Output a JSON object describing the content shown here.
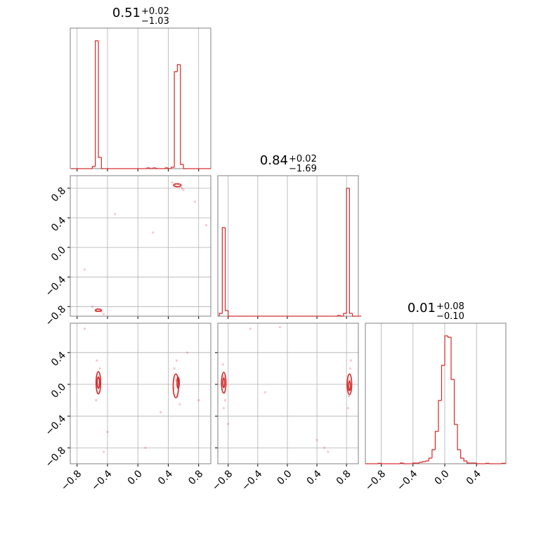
{
  "chart_data": [
    {
      "type": "histogram",
      "color": "#d62728",
      "title": {
        "value": "0.51",
        "upper": "+0.02",
        "lower": "−1.03"
      },
      "bins": [
        -0.88,
        -0.84,
        -0.8,
        -0.76,
        -0.72,
        -0.68,
        -0.64,
        -0.6,
        -0.56,
        -0.52,
        -0.48,
        -0.44,
        -0.4,
        -0.36,
        -0.32,
        -0.28,
        -0.24,
        -0.2,
        -0.16,
        -0.12,
        -0.08,
        -0.04,
        0,
        0.04,
        0.08,
        0.12,
        0.16,
        0.2,
        0.24,
        0.28,
        0.32,
        0.36,
        0.4,
        0.44,
        0.48,
        0.52,
        0.56,
        0.6,
        0.64,
        0.68,
        0.72,
        0.76,
        0.8,
        0.84,
        0.88,
        0.92,
        0.96
      ],
      "counts": [
        0,
        0,
        0,
        0,
        0,
        0,
        0,
        15,
        910,
        80,
        0,
        0,
        0,
        0,
        0,
        0,
        0,
        0,
        0,
        0,
        0,
        0,
        0,
        0,
        0,
        5,
        0,
        5,
        0,
        0,
        0,
        5,
        0,
        10,
        690,
        740,
        30,
        0,
        0,
        0,
        0,
        0,
        0,
        0,
        0,
        0
      ],
      "xlim": [
        -0.89,
        0.96
      ],
      "ylim": [
        0,
        1000
      ],
      "xticks": [
        -0.8,
        -0.4,
        0,
        0.4,
        0.8
      ],
      "grid": true
    },
    {
      "type": "scatter",
      "color": "#d62728",
      "x": [
        0.48,
        0.5,
        0.53,
        0.55,
        0.58,
        0.45,
        0.6,
        -0.5,
        -0.55,
        -0.53,
        -0.48,
        -0.6,
        -0.45,
        0.2,
        -0.3,
        0.75,
        -0.7,
        0.9
      ],
      "y": [
        0.86,
        0.83,
        0.85,
        0.82,
        0.8,
        0.88,
        0.78,
        -0.84,
        -0.86,
        -0.83,
        -0.87,
        -0.8,
        -0.9,
        0.2,
        0.45,
        0.62,
        -0.3,
        0.3
      ],
      "contours": [
        {
          "x": 0.52,
          "y": 0.84,
          "rx": 0.05,
          "ry": 0.02
        },
        {
          "x": -0.52,
          "y": -0.85,
          "rx": 0.04,
          "ry": 0.015
        }
      ],
      "xlim": [
        -0.89,
        0.96
      ],
      "ylim": [
        -0.93,
        0.97
      ],
      "xticks": [
        -0.8,
        -0.4,
        0,
        0.4,
        0.8
      ],
      "yticks": [
        {
          "value": -0.8,
          "label": "−0.8"
        },
        {
          "value": -0.4,
          "label": "−0.4"
        },
        {
          "value": 0,
          "label": "0.0"
        },
        0.4,
        0.8
      ],
      "grid": true
    },
    {
      "type": "histogram",
      "color": "#d62728",
      "title": {
        "value": "0.84",
        "upper": "+0.02",
        "lower": "−1.69"
      },
      "bins": [
        -0.92,
        -0.88,
        -0.84,
        -0.8,
        -0.76,
        -0.72,
        -0.68,
        -0.64,
        -0.6,
        -0.56,
        -0.52,
        -0.48,
        -0.44,
        -0.4,
        -0.36,
        -0.32,
        -0.28,
        -0.24,
        -0.2,
        -0.16,
        -0.12,
        -0.08,
        -0.04,
        0,
        0.04,
        0.08,
        0.12,
        0.16,
        0.2,
        0.24,
        0.28,
        0.32,
        0.36,
        0.4,
        0.44,
        0.48,
        0.52,
        0.56,
        0.6,
        0.64,
        0.68,
        0.72,
        0.76,
        0.8,
        0.84,
        0.88,
        0.92,
        0.96,
        1.0
      ],
      "counts": [
        20,
        630,
        40,
        0,
        0,
        0,
        0,
        0,
        0,
        0,
        0,
        0,
        0,
        0,
        0,
        0,
        0,
        0,
        0,
        0,
        0,
        0,
        0,
        0,
        0,
        0,
        0,
        0,
        0,
        0,
        0,
        0,
        0,
        0,
        0,
        0,
        0,
        0,
        0,
        0,
        5,
        0,
        20,
        910,
        20,
        0,
        0,
        0
      ],
      "xlim": [
        -0.94,
        0.96
      ],
      "ylim": [
        0,
        1000
      ],
      "xticks": [
        -0.8,
        -0.4,
        0,
        0.4,
        0.8
      ],
      "grid": true
    },
    {
      "type": "scatter",
      "color": "#d62728",
      "x": [
        -0.52,
        -0.53,
        -0.5,
        -0.55,
        -0.51,
        -0.54,
        0.5,
        0.52,
        0.48,
        0.55,
        0.51,
        0.47,
        -0.7,
        0.3,
        -0.4,
        0.8,
        0.1,
        -0.45,
        0.65
      ],
      "y": [
        0.1,
        -0.1,
        0.2,
        -0.2,
        0,
        0.3,
        0.05,
        -0.15,
        0.2,
        -0.25,
        0.3,
        -0.05,
        0.7,
        -0.35,
        -0.6,
        -0.2,
        -0.8,
        -0.85,
        0.4
      ],
      "contours": [
        {
          "x": -0.52,
          "y": 0.02,
          "rx": 0.03,
          "ry": 0.14
        },
        {
          "x": -0.52,
          "y": 0.02,
          "rx": 0.015,
          "ry": 0.07
        },
        {
          "x": 0.5,
          "y": -0.02,
          "rx": 0.035,
          "ry": 0.15
        },
        {
          "x": 0.53,
          "y": 0.02,
          "rx": 0.015,
          "ry": 0.07
        }
      ],
      "xlim": [
        -0.89,
        0.96
      ],
      "ylim": [
        -1.0,
        0.77
      ],
      "xticks": [
        {
          "value": -0.8,
          "label": "−0.8"
        },
        {
          "value": -0.4,
          "label": "−0.4"
        },
        {
          "value": 0,
          "label": "0.0"
        },
        0.4,
        0.8
      ],
      "yticks": [
        {
          "value": -0.8,
          "label": "−0.8"
        },
        {
          "value": -0.4,
          "label": "−0.4"
        },
        {
          "value": 0,
          "label": "0.0"
        },
        0.4
      ],
      "grid": true
    },
    {
      "type": "scatter",
      "color": "#d62728",
      "x": [
        -0.86,
        -0.85,
        -0.87,
        -0.84,
        -0.88,
        -0.86,
        0.84,
        0.83,
        0.85,
        0.82,
        0.86,
        0.84,
        -0.5,
        -0.1,
        0.4,
        -0.3,
        0.5,
        -0.8,
        0.55
      ],
      "y": [
        0.1,
        -0.1,
        0.25,
        -0.2,
        0,
        -0.3,
        0.05,
        -0.15,
        0.2,
        -0.3,
        0.3,
        -0.05,
        0.7,
        0.72,
        -0.7,
        -0.1,
        -0.8,
        -0.5,
        -0.85
      ],
      "contours": [
        {
          "x": -0.86,
          "y": 0.02,
          "rx": 0.03,
          "ry": 0.13
        },
        {
          "x": -0.86,
          "y": 0.02,
          "rx": 0.012,
          "ry": 0.06
        },
        {
          "x": 0.84,
          "y": 0,
          "rx": 0.03,
          "ry": 0.13
        },
        {
          "x": 0.84,
          "y": -0.02,
          "rx": 0.012,
          "ry": 0.06
        }
      ],
      "xlim": [
        -0.94,
        0.96
      ],
      "ylim": [
        -1.0,
        0.77
      ],
      "xticks": [
        {
          "value": -0.8,
          "label": "−0.8"
        },
        {
          "value": -0.4,
          "label": "−0.4"
        },
        {
          "value": 0,
          "label": "0.0"
        },
        0.4,
        0.8
      ],
      "yticks": [
        -0.8,
        -0.4,
        0,
        0.4
      ],
      "grid": true
    },
    {
      "type": "histogram",
      "color": "#d62728",
      "title": {
        "value": "0.01",
        "upper": "+0.08",
        "lower": "−0.10"
      },
      "bins": [
        -1.0,
        -0.96,
        -0.92,
        -0.88,
        -0.84,
        -0.8,
        -0.76,
        -0.72,
        -0.68,
        -0.64,
        -0.6,
        -0.56,
        -0.52,
        -0.48,
        -0.44,
        -0.4,
        -0.36,
        -0.32,
        -0.28,
        -0.24,
        -0.2,
        -0.16,
        -0.12,
        -0.08,
        -0.04,
        0,
        0.04,
        0.08,
        0.12,
        0.16,
        0.2,
        0.24,
        0.28,
        0.32,
        0.36,
        0.4,
        0.44,
        0.48,
        0.52,
        0.56,
        0.6,
        0.64,
        0.68,
        0.72,
        0.76
      ],
      "counts": [
        0,
        0,
        0,
        0,
        3,
        0,
        0,
        0,
        0,
        0,
        0,
        5,
        0,
        0,
        0,
        5,
        5,
        10,
        15,
        20,
        40,
        100,
        230,
        450,
        700,
        910,
        900,
        600,
        280,
        100,
        40,
        20,
        5,
        5,
        5,
        0,
        0,
        0,
        3,
        0,
        0,
        0,
        0,
        3
      ],
      "xlim": [
        -1.0,
        0.77
      ],
      "ylim": [
        0,
        1000
      ],
      "xticks": [
        {
          "value": -0.8,
          "label": "−0.8"
        },
        {
          "value": -0.4,
          "label": "−0.4"
        },
        {
          "value": 0,
          "label": "0.0"
        },
        0.4
      ],
      "grid": true
    }
  ]
}
